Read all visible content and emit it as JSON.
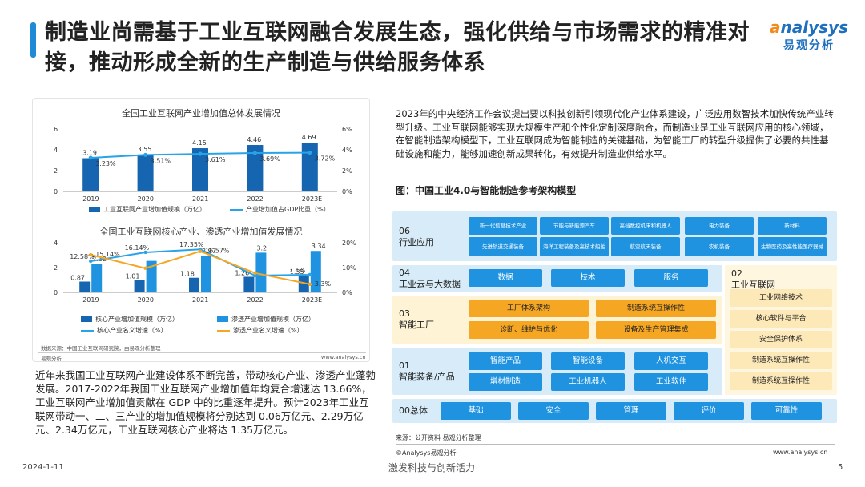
{
  "title": "制造业尚需基于工业互联网融合发展生态，强化供给与市场需求的精准对接，推动形成全新的生产制造与供给服务体系",
  "logo": {
    "en_a": "a",
    "en_rest": "nalysys",
    "cn": "易观分析"
  },
  "chart1": {
    "title": "全国工业互联网产业增加值总体发展情况",
    "legend_bar": "工业互联网产业增加值规模（万亿）",
    "legend_line": "产业增加值占GDP比重（%）",
    "y_left_ticks": [
      "0",
      "2",
      "4",
      "6"
    ],
    "y_right_ticks": [
      "0%",
      "2%",
      "4%",
      "6%"
    ]
  },
  "chart2": {
    "title": "全国工业互联网核心产业、渗透产业增加值发展情况",
    "legend": [
      "核心产业增加值规模（万亿）",
      "渗透产业增加值规模（万亿）",
      "核心产业名义增速（%）",
      "渗透产业名义增速（%）"
    ],
    "y_left_ticks": [
      "0",
      "2",
      "4"
    ],
    "y_right_ticks": [
      "0%",
      "10%",
      "20%"
    ]
  },
  "chart_data": [
    {
      "type": "bar",
      "title": "全国工业互联网产业增加值总体发展情况",
      "categories": [
        "2019",
        "2020",
        "2021",
        "2022",
        "2023E"
      ],
      "series": [
        {
          "name": "工业互联网产业增加值规模（万亿）",
          "values": [
            3.19,
            3.55,
            4.15,
            4.46,
            4.69
          ],
          "labels": [
            "3.19",
            "3.55",
            "4.15",
            "4.46",
            "4.69"
          ]
        },
        {
          "name": "产业增加值占GDP比重（%）",
          "values": [
            3.23,
            3.51,
            3.61,
            3.69,
            3.72
          ],
          "labels": [
            "3.23%",
            "3.51%",
            "3.61%",
            "3.69%",
            "3.72%"
          ]
        }
      ],
      "ylim": [
        0,
        6
      ],
      "y2lim": [
        0,
        6
      ]
    },
    {
      "type": "bar",
      "title": "全国工业互联网核心产业、渗透产业增加值发展情况",
      "categories": [
        "2019",
        "2020",
        "2021",
        "2022",
        "2023E"
      ],
      "series": [
        {
          "name": "核心产业增加值规模（万亿）",
          "values": [
            0.87,
            1.01,
            1.18,
            1.26,
            1.35
          ],
          "labels": [
            "0.87",
            "1.01",
            "1.18",
            "1.26",
            "1.35"
          ]
        },
        {
          "name": "渗透产业增加值规模（万亿）",
          "values": [
            2.32,
            2.54,
            2.97,
            3.2,
            3.34
          ],
          "labels": [
            "2.32",
            "",
            "2.97",
            "3.2",
            "3.34"
          ]
        },
        {
          "name": "核心产业名义增速（%）",
          "values": [
            12.58,
            16.14,
            17.35,
            6.78,
            7.1
          ],
          "labels": [
            "12.58%",
            "16.14%",
            "17.35%",
            "",
            "7.1%"
          ]
        },
        {
          "name": "渗透产业名义增速（%）",
          "values": [
            15.14,
            9.74,
            16.57,
            7.8,
            3.3
          ],
          "labels": [
            "15.14%",
            "",
            "16.57%",
            "",
            "3.3%"
          ]
        }
      ],
      "ylim": [
        0,
        4
      ],
      "y2lim": [
        0,
        20
      ]
    }
  ],
  "chart_source": "数据来源：中国工业互联网研究院，由易观分析整理",
  "chart_footer_left": "易观分析",
  "chart_footer_right": "www.analysys.cn",
  "left_text": "近年来我国工业互联网产业建设体系不断完善，带动核心产业、渗透产业蓬勃发展。2017-2022年我国工业互联网产业增加值年均复合增速达 13.66%，工业互联网产业增加值贡献在 GDP 中的比重逐年提升。预计2023年工业互联网带动一、二、三产业的增加值规模将分别达到 0.06万亿元、2.29万亿元、2.34万亿元，工业互联网核心产业将达 1.35万亿元。",
  "right_text": "2023年的中央经济工作会议提出要以科技创新引领现代化产业体系建设，广泛应用数智技术加快传统产业转型升级。工业互联网能够实现大规模生产和个性化定制深度融合，而制造业是工业互联网应用的核心领域，在智能制造架构模型下，工业互联网成为智能制造的关键基础，为智能工厂的转型升级提供了必要的共性基础设施和能力，能够加速创新成果转化，有效提升制造业供给水平。",
  "diagram_title": "图：中国工业4.0与智能制造参考架构模型",
  "diagram": {
    "r06": {
      "label": "06\n行业应用",
      "top": [
        "新一代信息技术产业",
        "节能与新能源汽车",
        "高档数控机床和机器人",
        "电力装备",
        "新材料"
      ],
      "bottom": [
        "先进轨道交通装备",
        "海洋工程装备及高技术船舶",
        "航空航天装备",
        "农机装备",
        "生物医药及高性能医疗器械"
      ]
    },
    "r04": {
      "label": "04\n工业云与大数据",
      "items": [
        "数据",
        "技术",
        "服务"
      ]
    },
    "r03": {
      "label": "03\n智能工厂",
      "items": [
        "工厂体系架构",
        "制造系统互操作性",
        "诊断、维护与优化",
        "设备及生产管理集成"
      ]
    },
    "r01": {
      "label": "01\n智能装备/产品",
      "items": [
        "智能产品",
        "智能设备",
        "人机交互",
        "增材制造",
        "工业机器人",
        "工业软件"
      ]
    },
    "r00": {
      "label": "00总体",
      "items": [
        "基础",
        "安全",
        "管理",
        "评价",
        "可靠性"
      ]
    },
    "r02": {
      "label": "02\n工业互联网",
      "items": [
        "工业网络技术",
        "核心软件与平台",
        "安全保护体系",
        "制造系统互操作性",
        "制造系统互操作性"
      ]
    }
  },
  "diagram_source": "来源：公开资料 易观分析整理",
  "footer_left": "©Analysys易观分析",
  "footer_right": "www.analysys.cn",
  "date": "2024-1-11",
  "slogan": "激发科技与创新活力",
  "page_number": "5",
  "colors": {
    "blue": "#1f93e0",
    "dark_blue": "#1565b0",
    "orange": "#f5a623",
    "light_blue_bg": "#d7ecf8",
    "line_blue": "#29a3e8"
  }
}
